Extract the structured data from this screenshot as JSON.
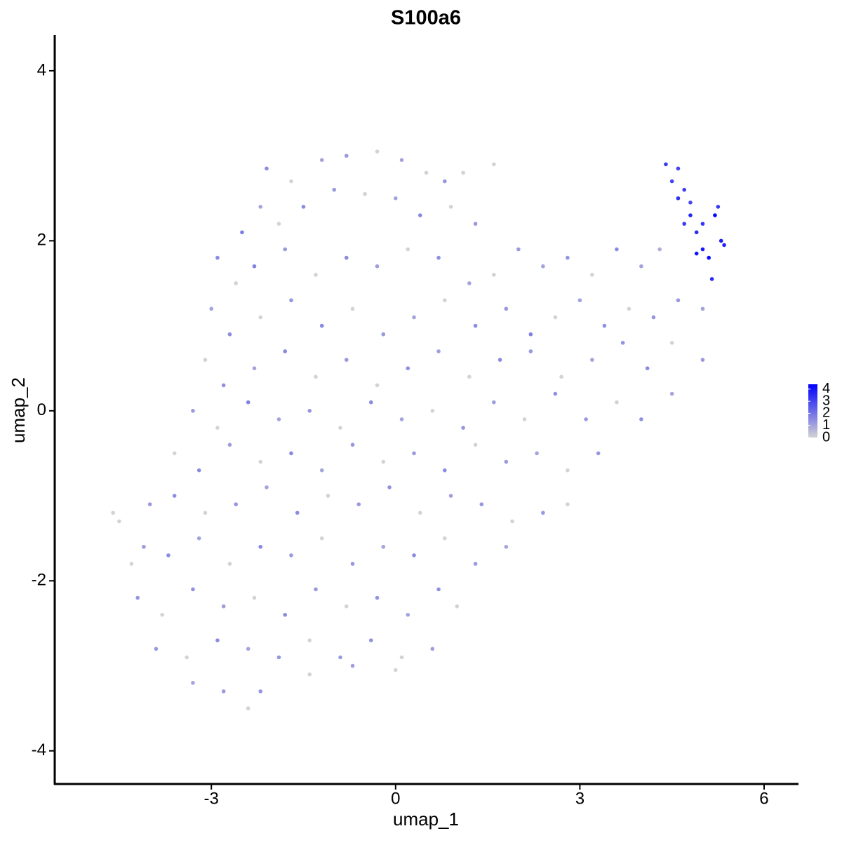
{
  "chart_data": {
    "type": "scatter",
    "title": "S100a6",
    "x_label": "umap_1",
    "y_label": "umap_2",
    "xlim": [
      -5.55,
      6.56
    ],
    "xticks": [
      -3,
      0,
      3,
      6
    ],
    "ylim": [
      -4.39,
      4.42
    ],
    "yticks": [
      -4,
      -2,
      0,
      2,
      4
    ],
    "color_scale": {
      "low": "#d3d3d3",
      "high": "#0000ff",
      "lim": [
        0,
        4.4
      ],
      "ticks": [
        0,
        1,
        2,
        3,
        4
      ]
    },
    "x": [
      -2.1,
      -1.7,
      -1.2,
      -0.8,
      -0.3,
      0.1,
      0.5,
      0.8,
      1.1,
      1.6,
      -2.5,
      -2.2,
      -1.9,
      -1.5,
      -1.0,
      -0.5,
      0,
      0.4,
      0.9,
      1.3,
      -2.9,
      -2.6,
      -2.3,
      -1.8,
      -1.3,
      -0.8,
      -0.3,
      0.2,
      0.7,
      1.2,
      1.6,
      2.0,
      2.4,
      2.8,
      3.2,
      3.6,
      4.0,
      4.3,
      -3.0,
      -2.7,
      -2.2,
      -1.7,
      -1.2,
      -0.7,
      -0.2,
      0.3,
      0.8,
      1.3,
      1.8,
      2.2,
      2.6,
      3.0,
      3.4,
      3.8,
      4.2,
      4.6,
      5.0,
      -3.1,
      -2.8,
      -2.3,
      -1.8,
      -1.3,
      -0.8,
      -0.3,
      0.2,
      0.7,
      1.2,
      1.7,
      2.2,
      2.7,
      3.2,
      3.7,
      4.1,
      4.5,
      5.0,
      -3.3,
      -2.9,
      -2.4,
      -1.9,
      -1.4,
      -0.9,
      -0.4,
      0.1,
      0.6,
      1.1,
      1.6,
      2.1,
      2.6,
      3.1,
      3.6,
      4.0,
      4.5,
      -3.6,
      -3.2,
      -2.7,
      -2.2,
      -1.7,
      -1.2,
      -0.7,
      -0.2,
      0.3,
      0.8,
      1.3,
      1.8,
      2.3,
      2.8,
      3.3,
      -4.6,
      -4.5,
      -4.0,
      -3.6,
      -3.1,
      -2.6,
      -2.1,
      -1.6,
      -1.1,
      -0.6,
      -0.1,
      0.4,
      0.9,
      1.4,
      1.9,
      2.4,
      2.8,
      -4.3,
      -4.1,
      -3.7,
      -3.2,
      -2.7,
      -2.2,
      -1.7,
      -1.2,
      -0.7,
      -0.2,
      0.3,
      0.8,
      1.3,
      1.8,
      -4.2,
      -3.8,
      -3.3,
      -2.8,
      -2.3,
      -1.8,
      -1.3,
      -0.8,
      -0.3,
      0.2,
      0.7,
      1.0,
      -3.9,
      -3.4,
      -2.9,
      -2.4,
      -1.9,
      -1.4,
      -0.9,
      -0.4,
      0.1,
      0.6,
      -3.3,
      -2.8,
      -2.4,
      -2.2,
      -1.4,
      -0.7,
      0.0,
      4.4,
      4.5,
      4.6,
      4.7,
      4.8,
      4.9,
      5.0,
      5.1,
      5.2,
      5.3,
      5.35,
      5.0,
      4.7,
      4.9,
      5.15,
      4.6,
      5.25,
      4.8
    ],
    "y": [
      2.85,
      2.7,
      2.95,
      3.0,
      3.05,
      2.95,
      2.8,
      2.7,
      2.8,
      2.9,
      2.1,
      2.4,
      2.2,
      2.4,
      2.6,
      2.55,
      2.5,
      2.3,
      2.4,
      2.2,
      1.8,
      1.5,
      1.7,
      1.9,
      1.6,
      1.8,
      1.7,
      1.9,
      1.8,
      1.5,
      1.6,
      1.9,
      1.7,
      1.8,
      1.6,
      1.9,
      1.7,
      1.9,
      1.2,
      0.9,
      1.1,
      1.3,
      1.0,
      1.2,
      0.9,
      1.1,
      1.3,
      1.0,
      1.2,
      0.9,
      1.1,
      1.3,
      1.0,
      1.2,
      1.1,
      1.3,
      1.2,
      0.6,
      0.3,
      0.5,
      0.7,
      0.4,
      0.6,
      0.3,
      0.5,
      0.7,
      0.4,
      0.6,
      0.7,
      0.4,
      0.6,
      0.8,
      0.5,
      0.8,
      0.6,
      0.0,
      -0.2,
      0.1,
      -0.1,
      0.0,
      -0.2,
      0.1,
      -0.1,
      0.0,
      -0.2,
      0.1,
      -0.1,
      0.2,
      -0.1,
      0.1,
      -0.1,
      0.2,
      -0.5,
      -0.7,
      -0.4,
      -0.6,
      -0.5,
      -0.7,
      -0.4,
      -0.6,
      -0.5,
      -0.7,
      -0.4,
      -0.6,
      -0.5,
      -0.7,
      -0.5,
      -1.2,
      -1.3,
      -1.1,
      -1.0,
      -1.2,
      -1.1,
      -0.9,
      -1.2,
      -1.0,
      -1.1,
      -0.9,
      -1.2,
      -1.0,
      -1.1,
      -1.3,
      -1.2,
      -1.1,
      -1.8,
      -1.6,
      -1.7,
      -1.5,
      -1.8,
      -1.6,
      -1.7,
      -1.5,
      -1.8,
      -1.6,
      -1.7,
      -1.5,
      -1.8,
      -1.6,
      -2.2,
      -2.4,
      -2.1,
      -2.3,
      -2.2,
      -2.4,
      -2.1,
      -2.3,
      -2.2,
      -2.4,
      -2.1,
      -2.3,
      -2.8,
      -2.9,
      -2.7,
      -2.8,
      -2.9,
      -2.7,
      -2.9,
      -2.7,
      -2.9,
      -2.8,
      -3.2,
      -3.3,
      -3.5,
      -3.3,
      -3.1,
      -3.0,
      -3.05,
      2.9,
      2.7,
      2.5,
      2.6,
      2.3,
      2.1,
      1.9,
      1.8,
      2.3,
      2.0,
      1.95,
      2.2,
      2.2,
      1.85,
      1.55,
      2.85,
      2.4,
      2.45
    ],
    "expression": [
      1.5,
      0,
      1,
      1.2,
      0,
      1,
      0,
      1.3,
      0,
      0,
      1.8,
      1,
      0,
      1.5,
      1.2,
      0,
      1,
      1.6,
      0,
      1.2,
      1.5,
      0,
      1.7,
      1.2,
      0,
      1.5,
      1.1,
      0,
      1.4,
      1,
      0,
      1.2,
      1,
      1.3,
      0,
      1.5,
      1,
      0.8,
      1,
      1.5,
      0,
      1.3,
      1.6,
      0,
      1.2,
      1,
      0,
      1.5,
      1.2,
      1.7,
      0,
      1,
      1.4,
      0,
      1.3,
      1.2,
      1,
      0,
      1.4,
      1,
      1.6,
      0,
      1.2,
      0,
      1.4,
      1.1,
      0,
      1.5,
      1.2,
      0,
      1,
      1.3,
      1.5,
      0,
      1.2,
      1.2,
      0,
      1.7,
      1,
      1.3,
      0,
      1.5,
      1,
      0,
      1.3,
      1.1,
      0,
      1.4,
      1.2,
      0,
      1.4,
      1,
      0,
      1.5,
      1.1,
      0,
      1.6,
      1,
      1.3,
      0,
      1.2,
      1.5,
      0,
      1.2,
      1,
      0,
      1.3,
      0,
      0,
      1.2,
      1.5,
      0,
      1.3,
      1,
      1.5,
      0,
      1.2,
      1.4,
      0,
      1.1,
      1.3,
      0,
      1.2,
      0,
      0,
      1.2,
      1.5,
      1,
      0,
      1.6,
      1.2,
      0,
      1.3,
      1,
      1.5,
      0,
      1.2,
      1,
      1.3,
      0,
      1.4,
      1.1,
      0,
      1.5,
      1.2,
      0,
      1.3,
      1,
      1.4,
      0,
      1.2,
      0,
      1.5,
      1,
      1.3,
      0,
      1.2,
      1.4,
      0,
      1.1,
      1,
      1.2,
      0,
      1.3,
      0,
      1.1,
      0,
      3.2,
      3.0,
      3.4,
      3.1,
      3.6,
      3.5,
      3.9,
      4.1,
      4.3,
      3.8,
      3.7,
      3.3,
      3.2,
      4.0,
      3.5,
      3.0,
      3.2,
      2.9
    ]
  }
}
